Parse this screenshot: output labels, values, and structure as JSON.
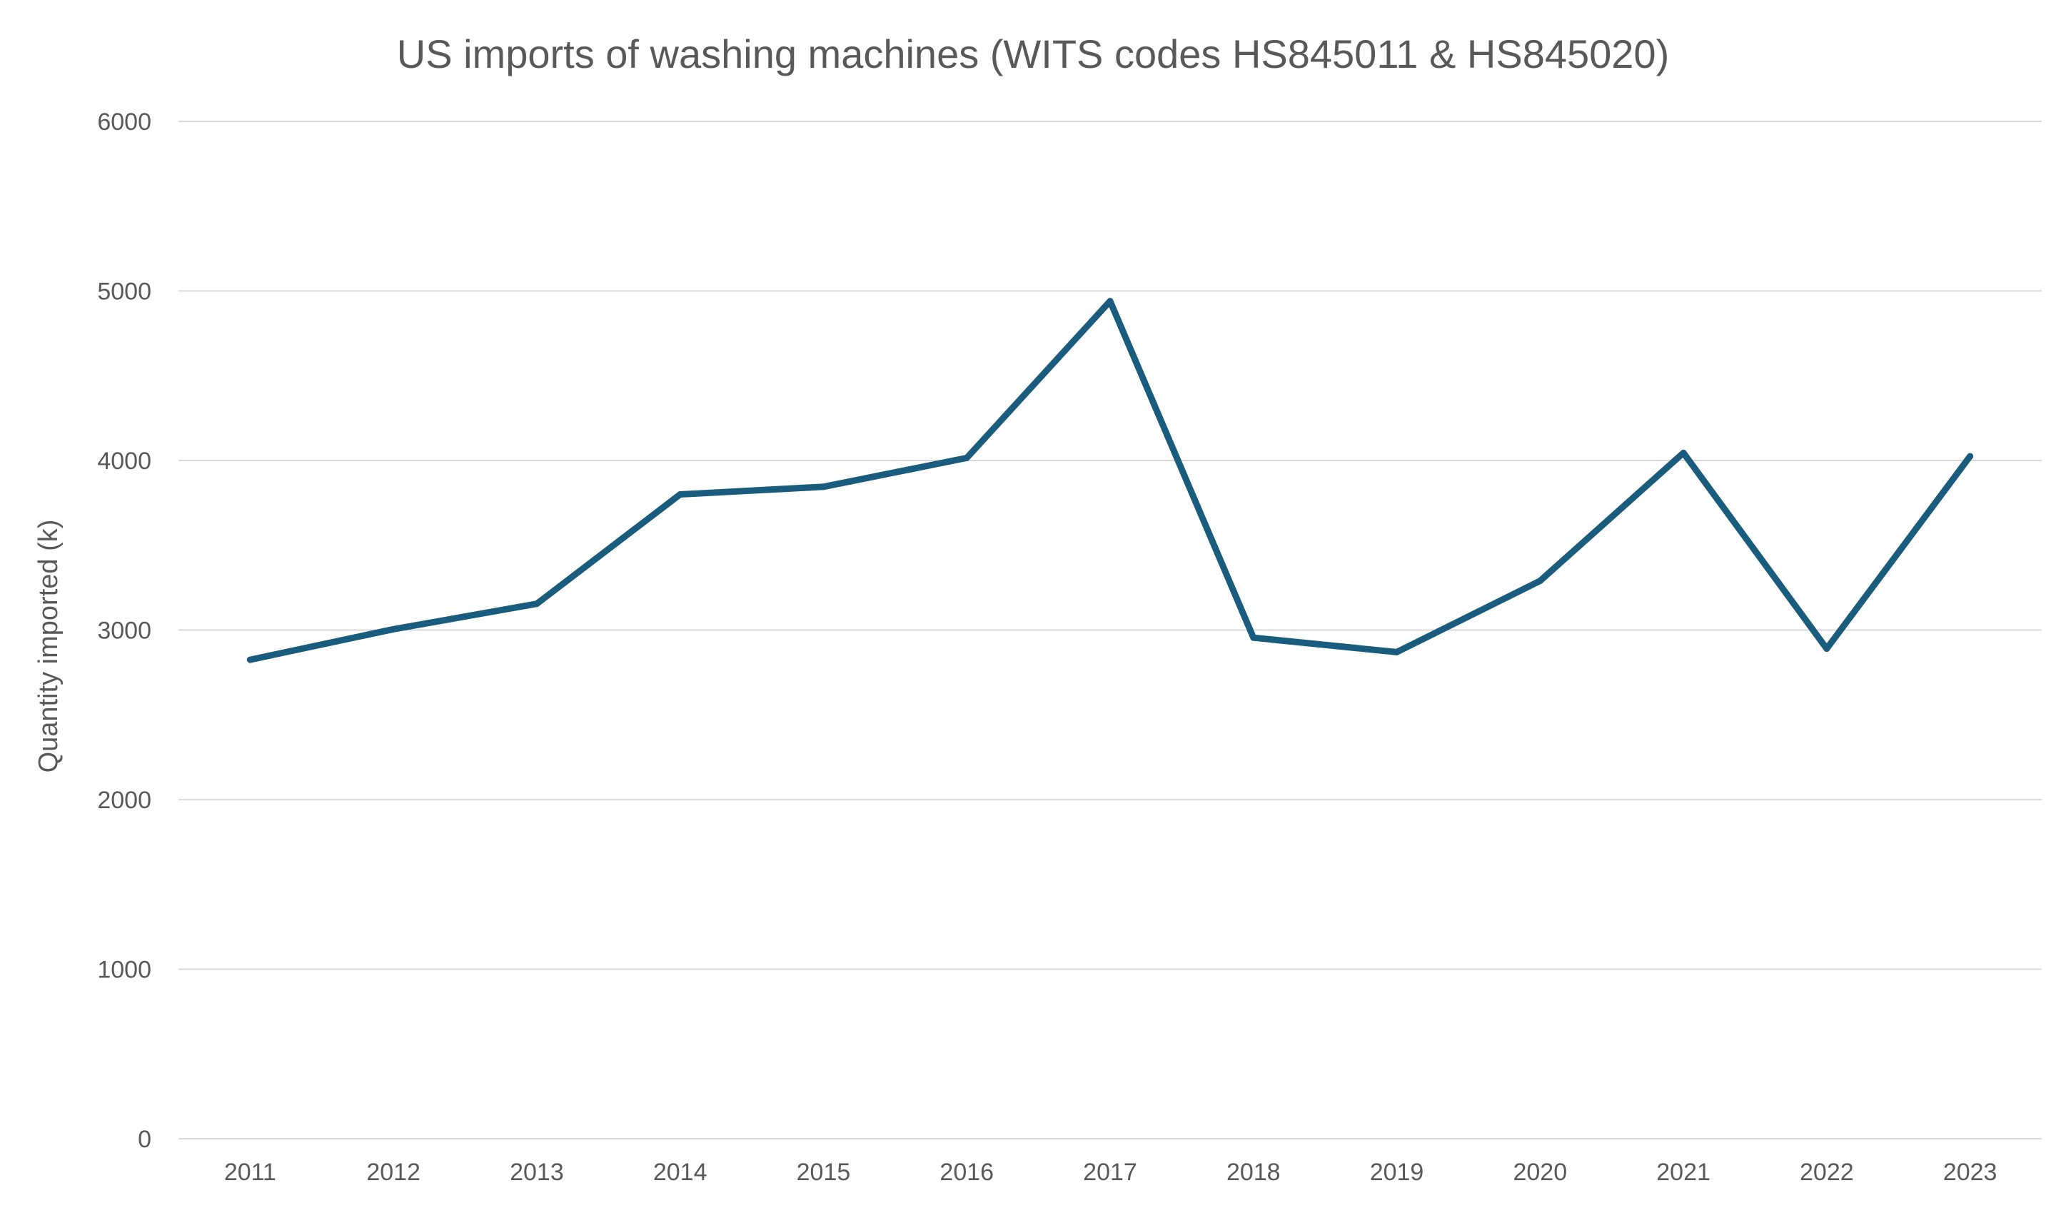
{
  "chart_data": {
    "type": "line",
    "title": "US imports of washing machines (WITS codes HS845011 & HS845020)",
    "xlabel": "",
    "ylabel": "Quantity imported (k)",
    "x": [
      "2011",
      "2012",
      "2013",
      "2014",
      "2015",
      "2016",
      "2017",
      "2018",
      "2019",
      "2020",
      "2021",
      "2022",
      "2023"
    ],
    "series": [
      {
        "color": "#1a5c7e",
        "values": [
          2825,
          3005,
          3155,
          3800,
          3845,
          4015,
          4940,
          2955,
          2870,
          3290,
          4045,
          2890,
          4025
        ]
      }
    ],
    "ylim": [
      0,
      6000
    ],
    "yticks": [
      0,
      1000,
      2000,
      3000,
      4000,
      5000,
      6000
    ],
    "grid": true,
    "legend": "none"
  }
}
